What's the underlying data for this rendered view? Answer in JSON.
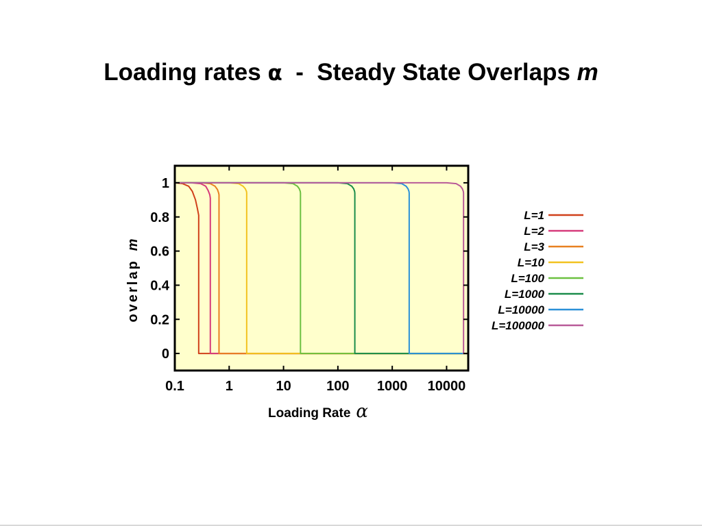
{
  "slide": {
    "title_prefix": "Loading rates ",
    "title_symbol": "α",
    "title_mid": "  -  Steady State Overlaps ",
    "title_variable": "m"
  },
  "chart_data": {
    "type": "line",
    "ylabel_text": "overlap",
    "ylabel_variable": "m",
    "xlabel_text": "Loading Rate",
    "xlabel_variable": "α",
    "x_scale": "log",
    "xlim": [
      0.1,
      25000
    ],
    "ylim": [
      -0.1,
      1.1
    ],
    "x_ticks": [
      0.1,
      1,
      10,
      100,
      1000,
      10000
    ],
    "x_tick_labels": [
      "0.1",
      "1",
      "10",
      "100",
      "1000",
      "10000"
    ],
    "y_ticks": [
      0,
      0.2,
      0.4,
      0.6,
      0.8,
      1
    ],
    "y_tick_labels": [
      "0",
      "0.2",
      "0.4",
      "0.6",
      "0.8",
      "1"
    ],
    "plot_background": "#ffffcc",
    "grid": false,
    "legend_position": "right",
    "series": [
      {
        "name": "L=1",
        "color": "#d0401a",
        "x": [
          0.1,
          0.14,
          0.18,
          0.21,
          0.24,
          0.26,
          0.275,
          0.275,
          25000
        ],
        "y": [
          1,
          0.995,
          0.98,
          0.95,
          0.9,
          0.85,
          0.81,
          0,
          0
        ]
      },
      {
        "name": "L=2",
        "color": "#d63a7a",
        "x": [
          0.1,
          0.2,
          0.3,
          0.37,
          0.41,
          0.44,
          0.45,
          0.45,
          25000
        ],
        "y": [
          1,
          1,
          0.995,
          0.98,
          0.955,
          0.93,
          0.91,
          0,
          0
        ]
      },
      {
        "name": "L=3",
        "color": "#e88020",
        "x": [
          0.1,
          0.3,
          0.45,
          0.55,
          0.61,
          0.64,
          0.65,
          0.65,
          25000
        ],
        "y": [
          1,
          1,
          0.995,
          0.98,
          0.96,
          0.94,
          0.93,
          0,
          0
        ]
      },
      {
        "name": "L=10",
        "color": "#f2c21f",
        "x": [
          0.1,
          1,
          1.5,
          1.8,
          1.98,
          2.08,
          2.1,
          2.1,
          25000
        ],
        "y": [
          1,
          1,
          0.995,
          0.98,
          0.965,
          0.95,
          0.94,
          0,
          0
        ]
      },
      {
        "name": "L=100",
        "color": "#6cc040",
        "x": [
          0.1,
          10,
          15,
          18,
          19.5,
          20.3,
          20.5,
          20.5,
          25000
        ],
        "y": [
          1,
          1,
          0.995,
          0.98,
          0.965,
          0.95,
          0.94,
          0,
          0
        ]
      },
      {
        "name": "L=1000",
        "color": "#1a8c4a",
        "x": [
          0.1,
          100,
          150,
          180,
          195,
          203,
          205,
          205,
          25000
        ],
        "y": [
          1,
          1,
          0.995,
          0.98,
          0.965,
          0.95,
          0.94,
          0,
          0
        ]
      },
      {
        "name": "L=10000",
        "color": "#2a90d8",
        "x": [
          0.1,
          1000,
          1500,
          1800,
          1950,
          2030,
          2050,
          2050,
          25000
        ],
        "y": [
          1,
          1,
          0.995,
          0.98,
          0.965,
          0.95,
          0.94,
          0,
          0
        ]
      },
      {
        "name": "L=100000",
        "color": "#b85a98",
        "x": [
          0.1,
          10000,
          15000,
          18000,
          19500,
          20300,
          20500,
          20500,
          25000
        ],
        "y": [
          1,
          1,
          0.995,
          0.98,
          0.965,
          0.95,
          0.94,
          0,
          0
        ]
      }
    ]
  }
}
